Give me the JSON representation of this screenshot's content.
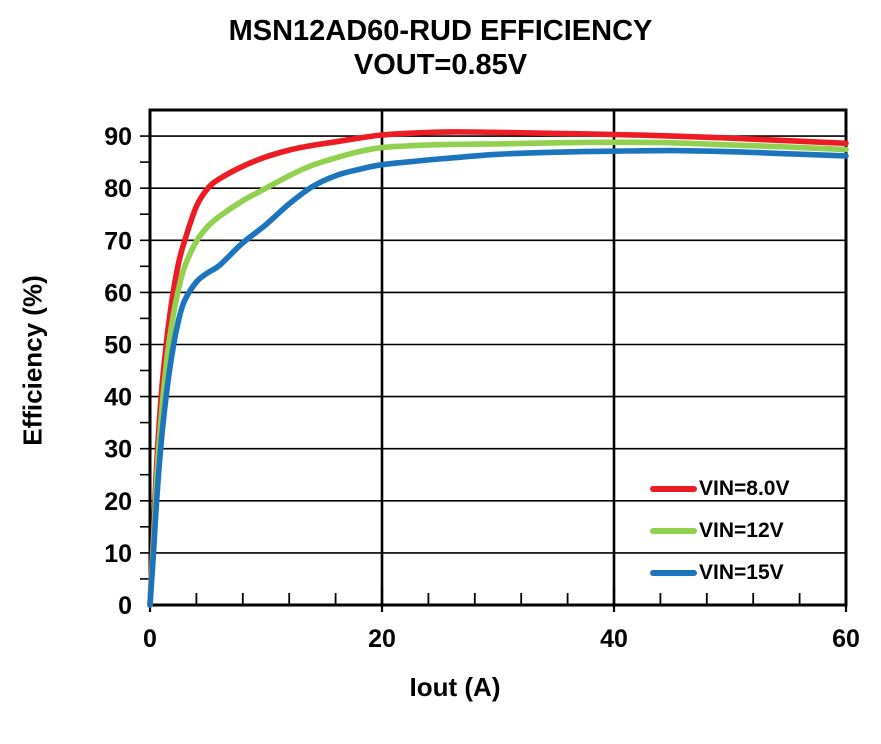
{
  "chart_data": {
    "type": "line",
    "title": "MSN12AD60-RUD EFFICIENCY",
    "subtitle": "VOUT=0.85V",
    "xlabel": "Iout (A)",
    "ylabel": "Efficiency (%)",
    "xlim": [
      0,
      60
    ],
    "ylim": [
      0,
      95
    ],
    "x_major_ticks": [
      0,
      20,
      40,
      60
    ],
    "x_minor_step": 4,
    "y_major_ticks": [
      0,
      10,
      20,
      30,
      40,
      50,
      60,
      70,
      80,
      90
    ],
    "y_minor_step": 5,
    "grid": {
      "horizontal_every": 10,
      "vertical_at": [
        20,
        40
      ]
    },
    "axis_color": "#000000",
    "background": "#FFFFFF",
    "legend_position": "inside-bottom-right",
    "x": [
      0,
      0.3,
      0.6,
      1,
      1.5,
      2,
      2.5,
      3,
      4,
      5,
      6,
      8,
      10,
      12,
      14,
      16,
      18,
      20,
      23,
      26,
      30,
      35,
      40,
      45,
      50,
      55,
      60
    ],
    "series": [
      {
        "name": "VIN=8.0V",
        "color": "#ED1C24",
        "values": [
          0,
          14,
          28,
          41,
          52,
          60,
          66,
          70,
          76.5,
          80,
          81.8,
          84.2,
          86,
          87.3,
          88.2,
          88.9,
          89.6,
          90.2,
          90.6,
          90.8,
          90.7,
          90.5,
          90.3,
          90.0,
          89.6,
          89.1,
          88.6
        ]
      },
      {
        "name": "VIN=12V",
        "color": "#92D050",
        "values": [
          0,
          12,
          25,
          37,
          48,
          55.5,
          61,
          65,
          69.8,
          72.7,
          74.6,
          77.6,
          80,
          82.4,
          84.4,
          85.8,
          87.0,
          87.8,
          88.2,
          88.4,
          88.5,
          88.7,
          88.8,
          88.7,
          88.3,
          87.9,
          87.4
        ]
      },
      {
        "name": "VIN=15V",
        "color": "#1C75BC",
        "values": [
          0,
          10,
          21,
          32,
          42,
          49.5,
          55,
          58.5,
          62,
          63.8,
          65.2,
          69.5,
          73,
          77,
          80.3,
          82.4,
          83.6,
          84.5,
          85.2,
          85.8,
          86.5,
          86.9,
          87.1,
          87.2,
          87.0,
          86.6,
          86.2
        ]
      }
    ]
  }
}
